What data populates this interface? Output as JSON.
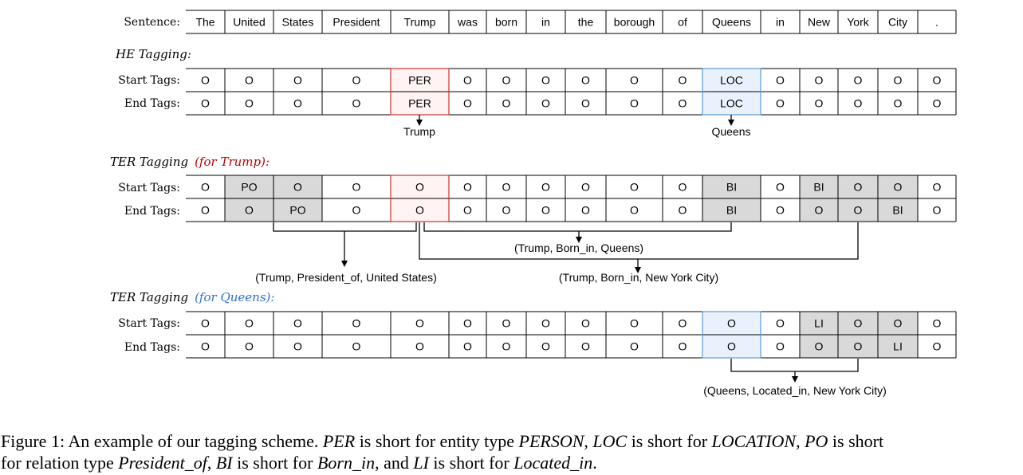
{
  "colors": {
    "per_border": "#d22f2f",
    "per_fill": "#fff3f3",
    "loc_border": "#5b9bd5",
    "loc_fill": "#e9f2fc",
    "shade": "#d9d9d9",
    "trump_label": "#c00000",
    "queens_label": "#2f6fd0"
  },
  "sentence_label": "Sentence:",
  "tokens": [
    "The",
    "United",
    "States",
    "President",
    "Trump",
    "was",
    "born",
    "in",
    "the",
    "borough",
    "of",
    "Queens",
    "in",
    "New",
    "York",
    "City",
    "."
  ],
  "he": {
    "title": "HE Tagging:",
    "start_label": "Start Tags:",
    "end_label": "End Tags:",
    "start": [
      "O",
      "O",
      "O",
      "O",
      "PER",
      "O",
      "O",
      "O",
      "O",
      "O",
      "O",
      "LOC",
      "O",
      "O",
      "O",
      "O",
      "O"
    ],
    "end": [
      "O",
      "O",
      "O",
      "O",
      "PER",
      "O",
      "O",
      "O",
      "O",
      "O",
      "O",
      "LOC",
      "O",
      "O",
      "O",
      "O",
      "O"
    ],
    "entity_trump": "Trump",
    "entity_queens": "Queens"
  },
  "ter_trump": {
    "title": "TER Tagging",
    "subtitle": "(for Trump):",
    "start_label": "Start Tags:",
    "end_label": "End Tags:",
    "start": [
      "O",
      "PO",
      "O",
      "O",
      "O",
      "O",
      "O",
      "O",
      "O",
      "O",
      "O",
      "BI",
      "O",
      "BI",
      "O",
      "O",
      "O"
    ],
    "end": [
      "O",
      "O",
      "PO",
      "O",
      "O",
      "O",
      "O",
      "O",
      "O",
      "O",
      "O",
      "BI",
      "O",
      "O",
      "O",
      "BI",
      "O"
    ],
    "rel_1": "(Trump, President_of, United States)",
    "rel_2": "(Trump, Born_in, Queens)",
    "rel_3": "(Trump, Born_in, New York City)"
  },
  "ter_queens": {
    "title": "TER Tagging",
    "subtitle": "(for Queens):",
    "start_label": "Start Tags:",
    "end_label": "End Tags:",
    "start": [
      "O",
      "O",
      "O",
      "O",
      "O",
      "O",
      "O",
      "O",
      "O",
      "O",
      "O",
      "O",
      "O",
      "LI",
      "O",
      "O",
      "O"
    ],
    "end": [
      "O",
      "O",
      "O",
      "O",
      "O",
      "O",
      "O",
      "O",
      "O",
      "O",
      "O",
      "O",
      "O",
      "O",
      "O",
      "LI",
      "O"
    ],
    "rel_1": "(Queens, Located_in, New York City)"
  },
  "caption": {
    "p1": "Figure 1: An example of our tagging scheme. ",
    "t_per": "PER",
    "p2": " is short for entity type ",
    "t_person": "PERSON",
    "p3": ", ",
    "t_loc": "LOC",
    "p4": " is short for ",
    "t_location": "LOCATION",
    "p5": ", ",
    "t_po": "PO",
    "p6": " is short",
    "p7": "for relation type ",
    "t_president_of": "President_of",
    "p8": ", ",
    "t_bi": "BI",
    "p9": " is short for ",
    "t_born_in": "Born_in",
    "p10": ", and ",
    "t_li": "LI",
    "p11": " is short for ",
    "t_located_in": "Located_in",
    "p12": "."
  }
}
